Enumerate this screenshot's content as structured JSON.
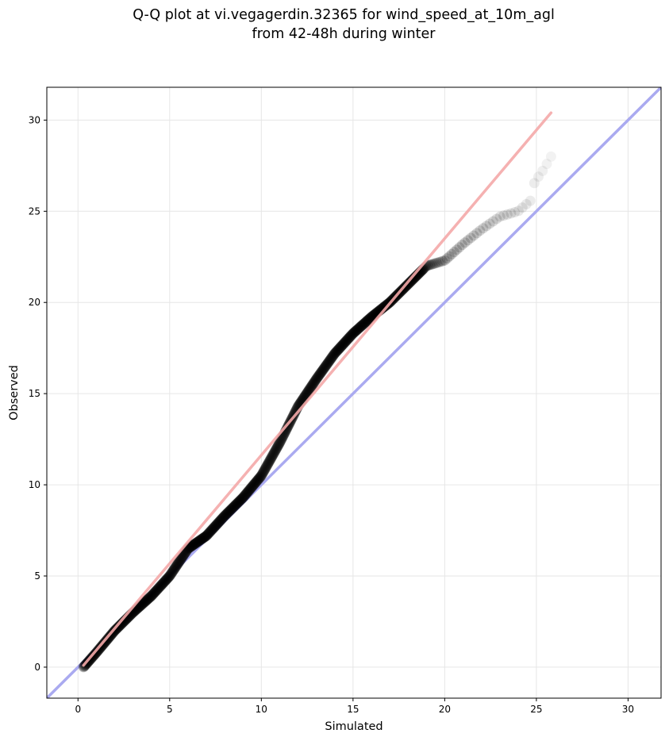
{
  "chart_data": {
    "type": "scatter",
    "title_lines": [
      "Q-Q plot at vi.vegagerdin.32365 for wind_speed_at_10m_agl",
      "from 42-48h during winter"
    ],
    "xlabel": "Simulated",
    "ylabel": "Observed",
    "xlim": [
      -1.7,
      31.8
    ],
    "ylim": [
      -1.7,
      31.8
    ],
    "xticks": [
      "0",
      "5",
      "10",
      "15",
      "20",
      "25",
      "30"
    ],
    "yticks": [
      "0",
      "5",
      "10",
      "15",
      "20",
      "25",
      "30"
    ],
    "grid": true,
    "colors": {
      "points": "#000000",
      "identity_line": "#aaaaf0",
      "fit_line": "#f4a8a8"
    },
    "identity_line": {
      "x": [
        -1.7,
        31.8
      ],
      "y": [
        -1.7,
        31.8
      ]
    },
    "fit_line": {
      "x": [
        0.3,
        25.8
      ],
      "y": [
        0.1,
        30.4
      ]
    },
    "anchors": [
      [
        0.3,
        0.0
      ],
      [
        1.0,
        0.8
      ],
      [
        2.0,
        2.0
      ],
      [
        3.0,
        3.0
      ],
      [
        4.0,
        3.9
      ],
      [
        5.0,
        5.0
      ],
      [
        6.0,
        6.5
      ],
      [
        7.0,
        7.2
      ],
      [
        8.0,
        8.3
      ],
      [
        9.0,
        9.3
      ],
      [
        10.0,
        10.5
      ],
      [
        11.0,
        12.3
      ],
      [
        12.0,
        14.3
      ],
      [
        13.0,
        15.8
      ],
      [
        14.0,
        17.2
      ],
      [
        15.0,
        18.3
      ],
      [
        16.0,
        19.2
      ],
      [
        17.0,
        20.0
      ],
      [
        18.0,
        21.0
      ],
      [
        19.0,
        22.0
      ],
      [
        20.0,
        22.3
      ],
      [
        21.0,
        23.2
      ],
      [
        22.0,
        24.0
      ],
      [
        23.0,
        24.7
      ],
      [
        24.0,
        25.0
      ],
      [
        24.7,
        25.6
      ],
      [
        24.9,
        26.6
      ],
      [
        25.4,
        27.3
      ],
      [
        25.8,
        28.0
      ]
    ],
    "point_count": 800
  }
}
